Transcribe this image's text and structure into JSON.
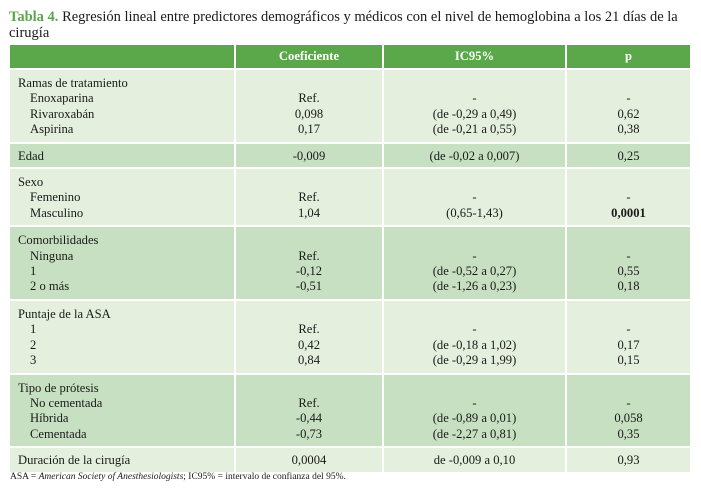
{
  "caption": {
    "label": "Tabla 4.",
    "text": " Regresión lineal entre predictores demográficos y médicos con el nivel de hemoglobina a los 21 días de la cirugía"
  },
  "headers": [
    "",
    "Coeficiente",
    "IC95%",
    "p"
  ],
  "groups": [
    {
      "title": "Ramas de tratamiento",
      "rows": [
        [
          "Enoxaparina",
          "Ref.",
          "-",
          "-"
        ],
        [
          "Rivaroxabán",
          "0,098",
          "(de -0,29 a 0,49)",
          "0,62"
        ],
        [
          "Aspirina",
          "0,17",
          "(de -0,21 a 0,55)",
          "0,38"
        ]
      ]
    },
    {
      "title": "Edad",
      "single": [
        "-0,009",
        "(de -0,02 a 0,007)",
        "0,25"
      ]
    },
    {
      "title": "Sexo",
      "rows": [
        [
          "Femenino",
          "Ref.",
          "-",
          "-"
        ],
        [
          "Masculino",
          "1,04",
          "(0,65-1,43)",
          "0,0001"
        ]
      ],
      "bold_p": [
        1
      ]
    },
    {
      "title": "Comorbilidades",
      "rows": [
        [
          "Ninguna",
          "Ref.",
          "-",
          "-"
        ],
        [
          "1",
          "-0,12",
          "(de -0,52 a 0,27)",
          "0,55"
        ],
        [
          "2 o más",
          "-0,51",
          "(de -1,26 a 0,23)",
          "0,18"
        ]
      ]
    },
    {
      "title": "Puntaje de la ASA",
      "rows": [
        [
          "1",
          "Ref.",
          "-",
          "-"
        ],
        [
          "2",
          "0,42",
          "(de -0,18 a 1,02)",
          "0,17"
        ],
        [
          "3",
          "0,84",
          "(de -0,29 a 1,99)",
          "0,15"
        ]
      ]
    },
    {
      "title": "Tipo de prótesis",
      "rows": [
        [
          "No cementada",
          "Ref.",
          "-",
          "-"
        ],
        [
          "Híbrida",
          "-0,44",
          "(de -0,89 a 0,01)",
          "0,058"
        ],
        [
          "Cementada",
          "-0,73",
          "(de -2,27 a 0,81)",
          "0,35"
        ]
      ]
    },
    {
      "title": "Duración de la cirugía",
      "single": [
        "0,0004",
        "de -0,009 a 0,10",
        "0,93"
      ]
    }
  ],
  "footnote": {
    "abbr": "ASA = ",
    "italic": "American Society of Anesthesiologists",
    "rest": "; IC95% = intervalo de confianza del 95%."
  }
}
